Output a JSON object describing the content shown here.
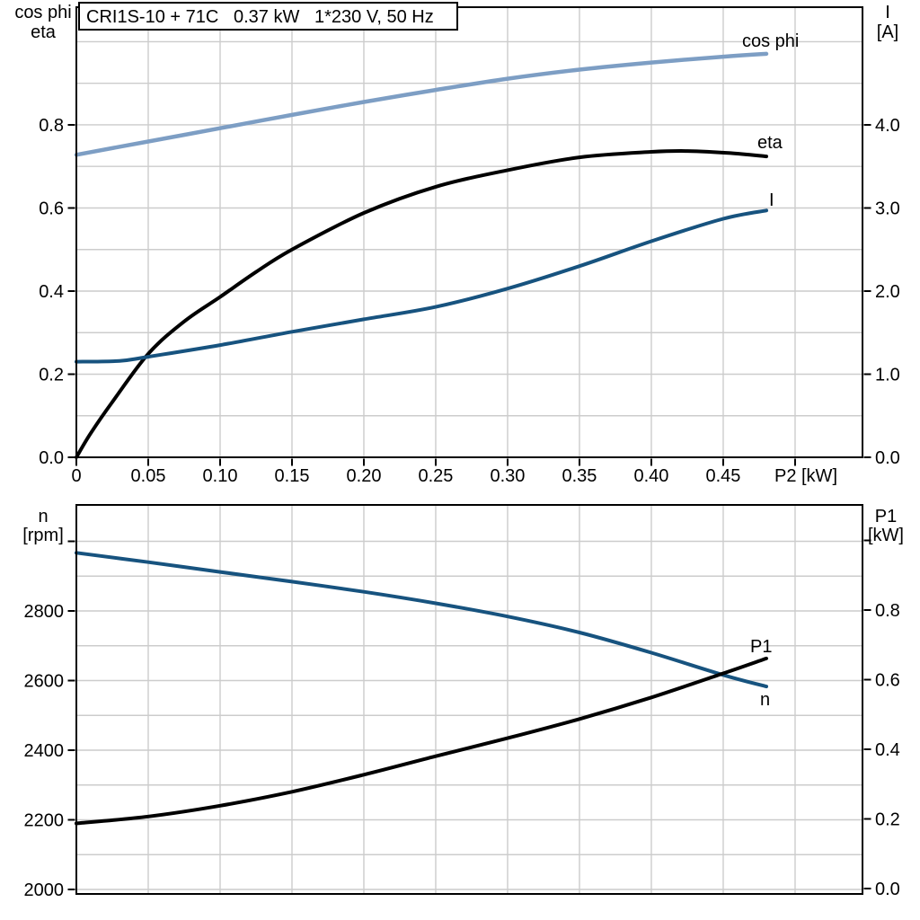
{
  "page": {
    "background": "#ffffff"
  },
  "title_box": {
    "text": "CRI1S-10 + 71C   0.37 kW   1*230 V, 50 Hz"
  },
  "colors": {
    "light_blue": "#7d9ec4",
    "dark_blue": "#17537f",
    "black": "#000000",
    "grid": "#cccccc",
    "axis": "#000000",
    "background": "#ffffff"
  },
  "chart_data": [
    {
      "type": "line",
      "id": "motor-electrical",
      "title": "CRI1S-10 + 71C   0.37 kW   1*230 V, 50 Hz",
      "x_axis": {
        "label": "P2 [kW]",
        "min": 0,
        "max": 0.5469,
        "gridlines": [
          0.05,
          0.1,
          0.15,
          0.2,
          0.25,
          0.3,
          0.35,
          0.4,
          0.45,
          0.5
        ],
        "ticks": [
          0,
          0.05,
          0.1,
          0.15,
          0.2,
          0.25,
          0.3,
          0.35,
          0.4,
          0.45,
          0.5
        ],
        "tick_labels": [
          "0",
          "0.05",
          "0.10",
          "0.15",
          "0.20",
          "0.25",
          "0.30",
          "0.35",
          "0.40",
          "0.45",
          ""
        ]
      },
      "left_axis": {
        "title_lines": [
          "cos phi",
          "eta"
        ],
        "min": 0,
        "max": 1.0832,
        "gridlines": [
          0.1,
          0.2,
          0.3,
          0.4,
          0.5,
          0.6,
          0.7,
          0.8,
          0.9,
          1.0
        ],
        "ticks": [
          0,
          0.2,
          0.4,
          0.6,
          0.8
        ],
        "tick_labels": [
          "0.0",
          "0.2",
          "0.4",
          "0.6",
          "0.8"
        ]
      },
      "right_axis": {
        "title_lines": [
          "I",
          "[A]"
        ],
        "min": 0,
        "max": 5.416,
        "ticks": [
          0,
          1,
          2,
          3,
          4
        ],
        "tick_labels": [
          "0.0",
          "1.0",
          "2.0",
          "3.0",
          "4.0"
        ]
      },
      "series": [
        {
          "id": "cos-phi",
          "name": "cos phi",
          "axis": "left",
          "color_key": "light_blue",
          "stroke_width": 4.5,
          "label": {
            "text": "cos phi",
            "x": 826,
            "y": 52
          },
          "points": [
            [
              0,
              0.728
            ],
            [
              0.05,
              0.76
            ],
            [
              0.1,
              0.792
            ],
            [
              0.15,
              0.824
            ],
            [
              0.2,
              0.855
            ],
            [
              0.25,
              0.884
            ],
            [
              0.3,
              0.911
            ],
            [
              0.35,
              0.933
            ],
            [
              0.4,
              0.95
            ],
            [
              0.45,
              0.964
            ],
            [
              0.48,
              0.971
            ]
          ]
        },
        {
          "id": "eta",
          "name": "eta",
          "axis": "left",
          "color_key": "black",
          "stroke_width": 4,
          "label": {
            "text": "eta",
            "x": 843,
            "y": 165
          },
          "points": [
            [
              0,
              0
            ],
            [
              0.01,
              0.058
            ],
            [
              0.025,
              0.133
            ],
            [
              0.05,
              0.249
            ],
            [
              0.075,
              0.327
            ],
            [
              0.1,
              0.386
            ],
            [
              0.125,
              0.446
            ],
            [
              0.15,
              0.5
            ],
            [
              0.2,
              0.588
            ],
            [
              0.25,
              0.651
            ],
            [
              0.3,
              0.691
            ],
            [
              0.35,
              0.722
            ],
            [
              0.4,
              0.735
            ],
            [
              0.425,
              0.737
            ],
            [
              0.455,
              0.732
            ],
            [
              0.48,
              0.724
            ]
          ]
        },
        {
          "id": "current",
          "name": "I",
          "axis": "right",
          "color_key": "dark_blue",
          "stroke_width": 4,
          "label": {
            "text": "I",
            "x": 856,
            "y": 229
          },
          "points": [
            [
              0,
              1.15
            ],
            [
              0.03,
              1.16
            ],
            [
              0.05,
              1.21
            ],
            [
              0.1,
              1.35
            ],
            [
              0.15,
              1.51
            ],
            [
              0.2,
              1.66
            ],
            [
              0.25,
              1.81
            ],
            [
              0.3,
              2.03
            ],
            [
              0.35,
              2.3
            ],
            [
              0.4,
              2.6
            ],
            [
              0.45,
              2.87
            ],
            [
              0.48,
              2.97
            ]
          ]
        }
      ]
    },
    {
      "type": "line",
      "id": "speed-power",
      "title": "",
      "x_axis": {
        "label": "",
        "min": 0,
        "max": 0.5469,
        "gridlines": [
          0.05,
          0.1,
          0.15,
          0.2,
          0.25,
          0.3,
          0.35,
          0.4,
          0.45,
          0.5
        ],
        "ticks": [],
        "tick_labels": []
      },
      "left_axis": {
        "title_lines": [
          "n",
          "[rpm]"
        ],
        "min": 1987.1,
        "max": 3104.5,
        "gridlines": [
          2000,
          2100,
          2200,
          2300,
          2400,
          2500,
          2600,
          2700,
          2800,
          2900,
          3000
        ],
        "ticks": [
          2000,
          2200,
          2400,
          2600,
          2800,
          3000
        ],
        "tick_labels": [
          "2000",
          "2200",
          "2400",
          "2600",
          "2800",
          ""
        ]
      },
      "right_axis": {
        "title_lines": [
          "P1",
          "[kW]"
        ],
        "min": -0.0155,
        "max": 1.1019,
        "ticks": [
          0,
          0.2,
          0.4,
          0.6,
          0.8,
          1.0
        ],
        "tick_labels": [
          "0.0",
          "0.2",
          "0.4",
          "0.6",
          "0.8",
          ""
        ]
      },
      "series": [
        {
          "id": "speed",
          "name": "n",
          "axis": "left",
          "color_key": "dark_blue",
          "stroke_width": 4,
          "label": {
            "text": "n",
            "x": 846,
            "y": 785
          },
          "points": [
            [
              0,
              2967
            ],
            [
              0.05,
              2940
            ],
            [
              0.1,
              2912
            ],
            [
              0.15,
              2884
            ],
            [
              0.2,
              2855
            ],
            [
              0.25,
              2822
            ],
            [
              0.3,
              2784
            ],
            [
              0.35,
              2738
            ],
            [
              0.4,
              2680
            ],
            [
              0.45,
              2616
            ],
            [
              0.48,
              2583
            ]
          ]
        },
        {
          "id": "p1",
          "name": "P1",
          "axis": "right",
          "color_key": "black",
          "stroke_width": 4,
          "label": {
            "text": "P1",
            "x": 835,
            "y": 726
          },
          "points": [
            [
              0,
              0.187
            ],
            [
              0.05,
              0.207
            ],
            [
              0.1,
              0.238
            ],
            [
              0.15,
              0.278
            ],
            [
              0.2,
              0.327
            ],
            [
              0.25,
              0.38
            ],
            [
              0.3,
              0.432
            ],
            [
              0.35,
              0.487
            ],
            [
              0.4,
              0.549
            ],
            [
              0.45,
              0.618
            ],
            [
              0.48,
              0.661
            ]
          ]
        }
      ]
    }
  ]
}
